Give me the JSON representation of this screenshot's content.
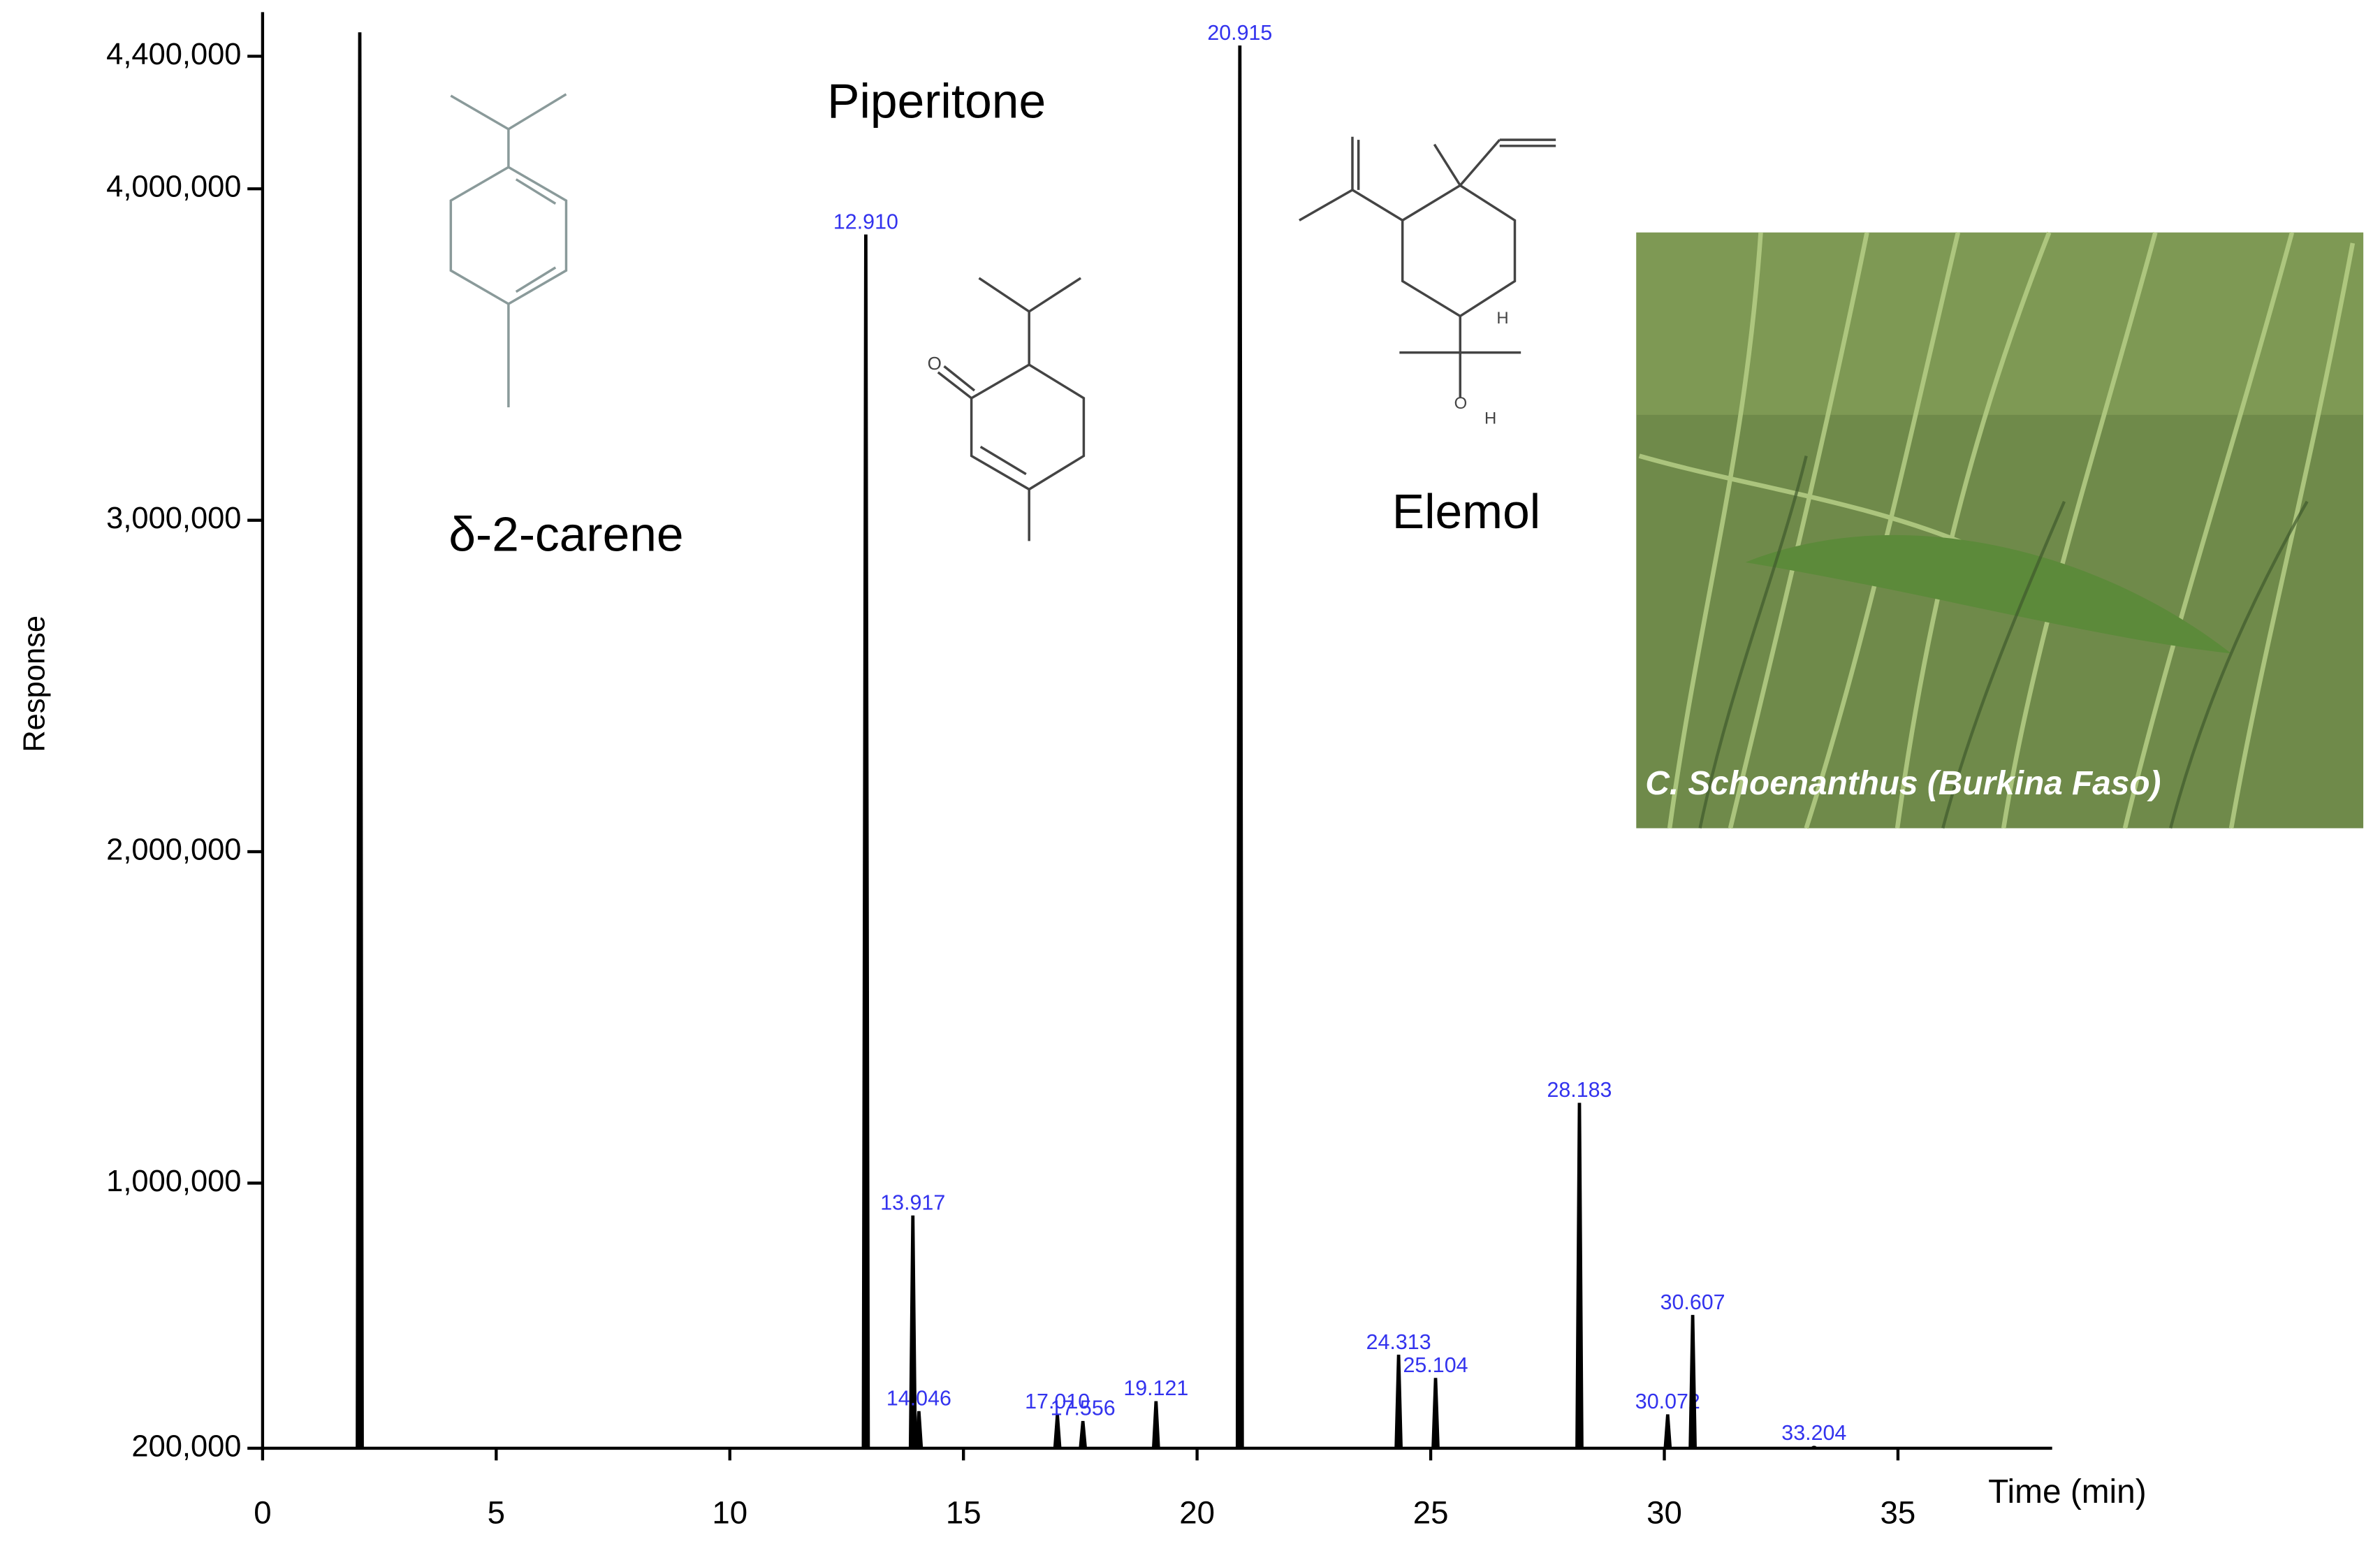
{
  "chart_data": {
    "type": "peaks",
    "y_label": "Response",
    "x_label": "Time (min)",
    "annotations": [
      "Piperitone",
      "δ-2-carene",
      "Elemol"
    ],
    "photo_caption": "C. Schoenanthus (Burkina Faso)",
    "x": [
      2.08,
      12.91,
      13.917,
      14.046,
      17.01,
      17.556,
      19.121,
      20.915,
      24.313,
      25.104,
      28.183,
      30.072,
      30.607,
      33.204
    ],
    "peak_labels": [
      null,
      "12.910",
      "13.917",
      "14.046",
      "17.010",
      "17.556",
      "19.121",
      "20.915",
      "24.313",
      "25.104",
      "28.183",
      "30.072",
      "30.607",
      "33.204"
    ],
    "values": [
      4470000,
      3860000,
      900000,
      310000,
      300000,
      280000,
      340000,
      4430000,
      480000,
      410000,
      1240000,
      300000,
      600000,
      205000
    ],
    "color": "#000000",
    "label_color": "#3333ee",
    "xlim": [
      0,
      38.3
    ],
    "xticks": [
      0,
      5,
      10,
      15,
      20,
      25,
      30,
      35
    ],
    "ylim": [
      200000,
      4533000
    ],
    "yticks": [
      {
        "value": 200000,
        "label": "200,000"
      },
      {
        "value": 1000000,
        "label": "1,000,000"
      },
      {
        "value": 2000000,
        "label": "2,000,000"
      },
      {
        "value": 3000000,
        "label": "3,000,000"
      },
      {
        "value": 4000000,
        "label": "4,000,000"
      },
      {
        "value": 4400000,
        "label": "4,400,000"
      }
    ]
  }
}
